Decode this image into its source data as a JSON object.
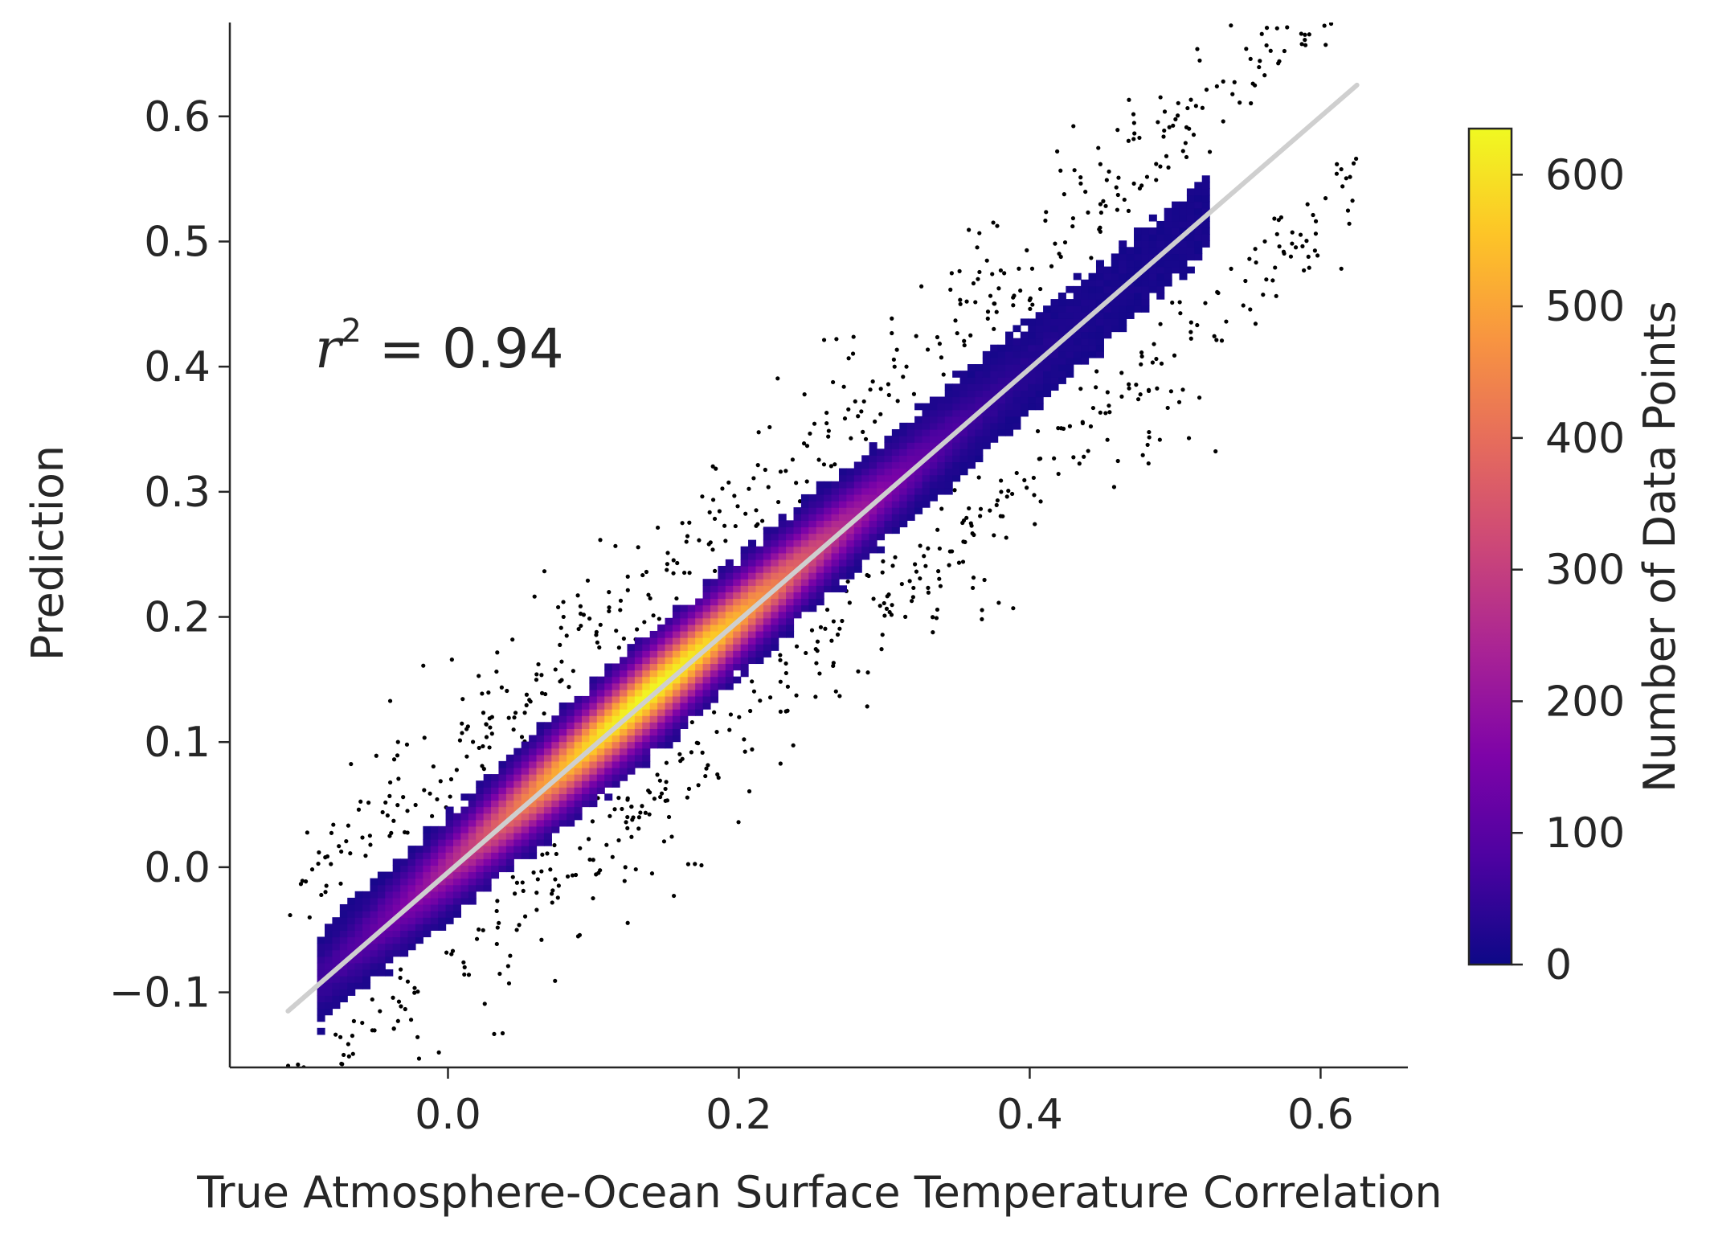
{
  "chart_data": {
    "type": "heatmap",
    "subtype": "2d-histogram-density-scatter",
    "title": "",
    "xlabel": "True Atmosphere-Ocean Surface Temperature Correlation",
    "ylabel": "Prediction",
    "xlim": [
      -0.15,
      0.66
    ],
    "ylim": [
      -0.16,
      0.675
    ],
    "x_ticks": [
      0.0,
      0.2,
      0.4,
      0.6
    ],
    "x_tick_labels": [
      "0.0",
      "0.2",
      "0.4",
      "0.6"
    ],
    "y_ticks": [
      -0.1,
      0.0,
      0.1,
      0.2,
      0.3,
      0.4,
      0.5,
      0.6
    ],
    "y_tick_labels": [
      "−0.1",
      "0.0",
      "0.1",
      "0.2",
      "0.3",
      "0.4",
      "0.5",
      "0.6"
    ],
    "grid": false,
    "colormap": "plasma",
    "colorbar": {
      "label": "Number of Data Points",
      "range": [
        0,
        635
      ],
      "ticks": [
        0,
        100,
        200,
        300,
        400,
        500,
        600
      ],
      "tick_labels": [
        "0",
        "100",
        "200",
        "300",
        "400",
        "500",
        "600"
      ]
    },
    "annotation": {
      "variable": "r",
      "exponent": "2",
      "text": " = 0.94",
      "x": -0.1,
      "y": 0.4
    },
    "fit_line": {
      "color": "#cfcfcf",
      "x": [
        -0.11,
        0.625
      ],
      "y": [
        -0.115,
        0.625
      ]
    },
    "density_peak": {
      "x": 0.135,
      "y": 0.135,
      "count": 620
    },
    "density_core_axis": {
      "x": [
        -0.09,
        0.52
      ],
      "y": [
        -0.07,
        0.52
      ]
    },
    "outlier_color": "#000000"
  }
}
